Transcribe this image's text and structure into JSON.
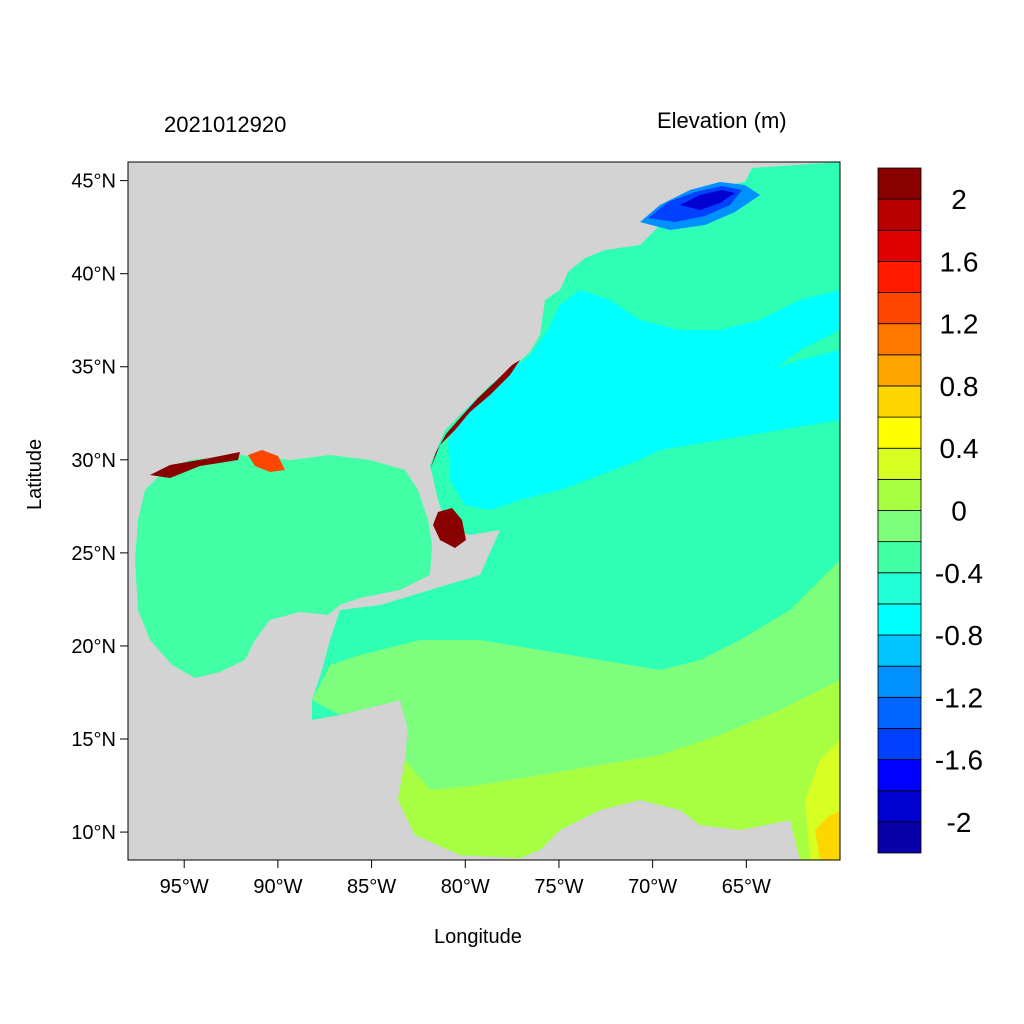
{
  "map": {
    "timestamp": "2021012920",
    "variable_title": "Elevation (m)",
    "xlabel": "Longitude",
    "ylabel": "Latitude",
    "lon_ticks": [
      {
        "value": -95,
        "label": "95°W"
      },
      {
        "value": -90,
        "label": "90°W"
      },
      {
        "value": -85,
        "label": "85°W"
      },
      {
        "value": -80,
        "label": "80°W"
      },
      {
        "value": -75,
        "label": "75°W"
      },
      {
        "value": -70,
        "label": "70°W"
      },
      {
        "value": -65,
        "label": "65°W"
      }
    ],
    "lat_ticks": [
      {
        "value": 45,
        "label": "45°N"
      },
      {
        "value": 40,
        "label": "40°N"
      },
      {
        "value": 35,
        "label": "35°N"
      },
      {
        "value": 30,
        "label": "30°N"
      },
      {
        "value": 25,
        "label": "25°N"
      },
      {
        "value": 20,
        "label": "20°N"
      },
      {
        "value": 15,
        "label": "15°N"
      },
      {
        "value": 10,
        "label": "10°N"
      }
    ],
    "lon_range": [
      -98,
      -60
    ],
    "lat_range": [
      8.5,
      46
    ],
    "land_color": "#d3d3d3",
    "ocean_default_color": "#2effb4"
  },
  "colorbar": {
    "colors": [
      "#0a00a8",
      "#0000d0",
      "#0000ff",
      "#0041ff",
      "#0064ff",
      "#0091ff",
      "#00c3ff",
      "#00ffff",
      "#23ffd7",
      "#42ffa6",
      "#7dff7d",
      "#a8ff42",
      "#d7ff23",
      "#ffff00",
      "#ffd700",
      "#ffa500",
      "#ff7800",
      "#ff4600",
      "#ff1a00",
      "#e00000",
      "#b80000",
      "#880000"
    ],
    "labels": [
      "2",
      "1.6",
      "1.2",
      "0.8",
      "0.4",
      "0",
      "-0.4",
      "-0.8",
      "-1.2",
      "-1.6",
      "-2"
    ]
  }
}
